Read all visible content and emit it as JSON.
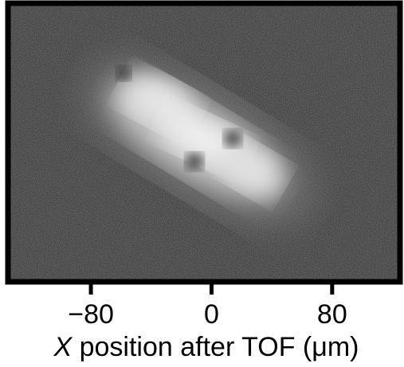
{
  "chart_data": {
    "type": "heatmap",
    "title": "",
    "xlabel": {
      "italic": "X",
      "rest": " position after TOF (μm)"
    },
    "ylabel": "",
    "x_ticks": [
      -80,
      0,
      80
    ],
    "x_tick_labels": [
      "−80",
      "0",
      "80"
    ],
    "xlim": [
      -135,
      125
    ],
    "grid": false,
    "legend": "none",
    "colormap": "grayscale",
    "background_color": "#2e2e2e",
    "frame_color": "#000000",
    "cloud": {
      "center_x": -5,
      "orientation": "elongated along a diagonal from upper-left to lower-right",
      "dark_holes": 3
    }
  }
}
